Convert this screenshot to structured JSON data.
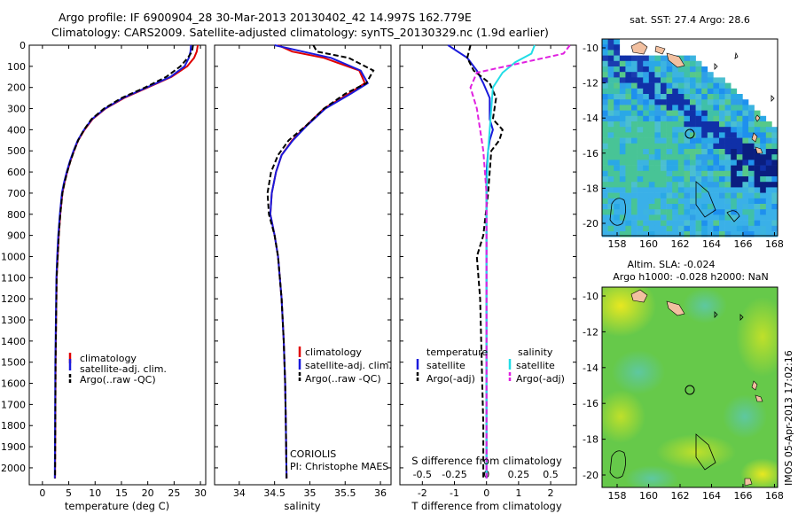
{
  "header": {
    "line1": "Argo profile: IF 6900904_28 30-Mar-2013 20130402_42 14.997S 162.779E",
    "line2": "Climatology: CARS2009. Satellite-adjusted climatology: synTS_20130329.nc (1.9d earlier)"
  },
  "colors": {
    "climatology": "#e00000",
    "satellite": "#1a1adc",
    "argo": "#000000",
    "sal_satellite": "#22dde6",
    "sal_argo": "#e020e0"
  },
  "chart_data": [
    {
      "type": "line",
      "id": "temp",
      "title": "",
      "xlabel": "temperature (deg C)",
      "ylabel": "",
      "xlim": [
        -2.5,
        31
      ],
      "ylim": [
        2080,
        0
      ],
      "xticks": [
        "0",
        "5",
        "10",
        "15",
        "20",
        "25",
        "30"
      ],
      "xtick_values": [
        0,
        5,
        10,
        15,
        20,
        25,
        30
      ],
      "yticks": [
        "0",
        "100",
        "200",
        "300",
        "400",
        "500",
        "600",
        "700",
        "800",
        "900",
        "1000",
        "1100",
        "1200",
        "1300",
        "1400",
        "1500",
        "1600",
        "1700",
        "1800",
        "1900",
        "2000"
      ],
      "ytick_values": [
        0,
        100,
        200,
        300,
        400,
        500,
        600,
        700,
        800,
        900,
        1000,
        1100,
        1200,
        1300,
        1400,
        1500,
        1600,
        1700,
        1800,
        1900,
        2000
      ],
      "legend": [
        "climatology",
        "satellite-adj. clim.",
        "Argo(..raw -QC)"
      ],
      "annotations": [],
      "series": [
        {
          "name": "climatology",
          "color": "climatology",
          "dash": false,
          "x": [
            29.5,
            29.3,
            28.8,
            27.5,
            24.5,
            20,
            15.5,
            12,
            9.5,
            8,
            6.8,
            6,
            5.3,
            4.7,
            4.2,
            3.8,
            3.4,
            3.1,
            2.9,
            2.7,
            2.6,
            2.5,
            2.45,
            2.4
          ],
          "y": [
            0,
            30,
            60,
            100,
            150,
            200,
            250,
            300,
            350,
            400,
            450,
            500,
            550,
            600,
            650,
            700,
            800,
            900,
            1000,
            1100,
            1300,
            1500,
            1800,
            2050
          ]
        },
        {
          "name": "satellite-adj. clim.",
          "color": "satellite",
          "dash": false,
          "x": [
            28.2,
            28.1,
            27.8,
            27.0,
            24.3,
            19.8,
            15.3,
            11.9,
            9.4,
            7.9,
            6.7,
            5.9,
            5.2,
            4.6,
            4.1,
            3.7,
            3.3,
            3.0,
            2.8,
            2.65,
            2.55,
            2.45,
            2.4,
            2.35
          ],
          "y": [
            0,
            30,
            60,
            100,
            150,
            200,
            250,
            300,
            350,
            400,
            450,
            500,
            550,
            600,
            650,
            700,
            800,
            900,
            1000,
            1100,
            1300,
            1500,
            1800,
            2050
          ]
        },
        {
          "name": "Argo(..raw -QC)",
          "color": "argo",
          "dash": true,
          "x": [
            28.6,
            28.4,
            27.6,
            26.2,
            23.5,
            19.5,
            15.0,
            11.7,
            9.3,
            7.9,
            6.8,
            6.0,
            5.3,
            4.7,
            4.2,
            3.8,
            3.4,
            3.1,
            2.9,
            2.7,
            2.6,
            2.5,
            2.45,
            2.4
          ],
          "y": [
            0,
            30,
            60,
            100,
            150,
            200,
            250,
            300,
            350,
            400,
            450,
            500,
            550,
            600,
            650,
            700,
            800,
            900,
            1000,
            1100,
            1300,
            1500,
            1800,
            2050
          ]
        }
      ]
    },
    {
      "type": "line",
      "id": "sal",
      "title": "",
      "xlabel": "salinity",
      "ylabel": "",
      "xlim": [
        33.65,
        36.15
      ],
      "ylim": [
        2080,
        0
      ],
      "xticks": [
        "34",
        "34.5",
        "35",
        "35.5",
        "36"
      ],
      "xtick_values": [
        34,
        34.5,
        35,
        35.5,
        36
      ],
      "yticks": [],
      "ytick_values": [],
      "legend": [
        "climatology",
        "satellite-adj. clim.",
        "Argo(..raw -QC)"
      ],
      "annotations": [
        "CORIOLIS",
        "PI: Christophe MAES"
      ],
      "series": [
        {
          "name": "climatology",
          "color": "climatology",
          "dash": false,
          "x": [
            34.55,
            34.75,
            35.2,
            35.7,
            35.78,
            35.55,
            35.2,
            34.95,
            34.75,
            34.6,
            34.52,
            34.46,
            34.44,
            34.5,
            34.55,
            34.6,
            34.63,
            34.65,
            34.66,
            34.67
          ],
          "y": [
            0,
            30,
            60,
            120,
            180,
            230,
            300,
            380,
            450,
            520,
            600,
            700,
            800,
            900,
            1000,
            1200,
            1400,
            1600,
            1800,
            2050
          ]
        },
        {
          "name": "satellite-adj. clim.",
          "color": "satellite",
          "dash": false,
          "x": [
            34.5,
            34.9,
            35.3,
            35.72,
            35.82,
            35.58,
            35.22,
            34.96,
            34.76,
            34.6,
            34.52,
            34.46,
            34.44,
            34.5,
            34.55,
            34.6,
            34.63,
            34.65,
            34.66,
            34.67
          ],
          "y": [
            0,
            30,
            60,
            120,
            180,
            230,
            300,
            380,
            450,
            520,
            600,
            700,
            800,
            900,
            1000,
            1200,
            1400,
            1600,
            1800,
            2050
          ]
        },
        {
          "name": "Argo(..raw -QC)",
          "color": "argo",
          "dash": true,
          "x": [
            35.05,
            35.1,
            35.55,
            35.9,
            35.8,
            35.5,
            35.2,
            34.95,
            34.7,
            34.55,
            34.45,
            34.4,
            34.42,
            34.5,
            34.55,
            34.6,
            34.63,
            34.65,
            34.66,
            34.67
          ],
          "y": [
            0,
            30,
            60,
            120,
            180,
            230,
            300,
            380,
            450,
            520,
            600,
            700,
            800,
            900,
            1000,
            1200,
            1400,
            1600,
            1800,
            2050
          ]
        }
      ]
    },
    {
      "type": "line",
      "id": "diff",
      "title": "",
      "xlabel": "T difference from climatology",
      "xlabel2": "S difference from climatology",
      "xlim": [
        -2.7,
        2.8
      ],
      "ylim": [
        2080,
        0
      ],
      "xticks": [
        "-2",
        "-1",
        "0",
        "1",
        "2"
      ],
      "xtick_values": [
        -2,
        -1,
        0,
        1,
        2
      ],
      "xticks_s": [
        "-0.5",
        "-0.25",
        "0",
        "0.25",
        "0.5"
      ],
      "xtick_values_s": [
        -2,
        -1,
        0,
        1,
        2
      ],
      "yticks": [],
      "ytick_values": [],
      "legend_title_t": "temperature",
      "legend_title_s": "salinity",
      "legend": [
        "satellite",
        "Argo(-adj)",
        "satellite",
        "Argo(-adj)"
      ],
      "annotations": [],
      "series": [
        {
          "name": "T satellite",
          "color": "satellite",
          "dash": false,
          "x": [
            -1.2,
            -0.6,
            -0.3,
            -0.1,
            0.1,
            0.1,
            0.2,
            0.1,
            0.05,
            0,
            0,
            0,
            0,
            0,
            0
          ],
          "y": [
            0,
            60,
            120,
            180,
            250,
            350,
            400,
            450,
            500,
            600,
            700,
            900,
            1200,
            1600,
            2050
          ]
        },
        {
          "name": "T Argo(-adj)",
          "color": "argo",
          "dash": true,
          "x": [
            -0.5,
            -0.6,
            -0.4,
            0.1,
            0.3,
            0.2,
            0.5,
            0.4,
            0.15,
            0.1,
            0.05,
            -0.1,
            -0.3,
            -0.2,
            -0.15,
            -0.1,
            -0.1
          ],
          "y": [
            0,
            60,
            120,
            180,
            250,
            350,
            400,
            450,
            500,
            600,
            700,
            900,
            1000,
            1200,
            1500,
            1800,
            2050
          ]
        },
        {
          "name": "S satellite",
          "color": "sal_satellite",
          "dash": false,
          "x": [
            1.5,
            1.4,
            0.9,
            0.5,
            0.2,
            0.15,
            0.1,
            0.05,
            0,
            0,
            0,
            0,
            0,
            0
          ],
          "y": [
            0,
            40,
            80,
            130,
            200,
            300,
            400,
            500,
            700,
            900,
            1200,
            1500,
            1800,
            2050
          ]
        },
        {
          "name": "S Argo(-adj)",
          "color": "sal_argo",
          "dash": true,
          "x": [
            2.6,
            2.4,
            1.2,
            -0.3,
            -0.5,
            -0.3,
            -0.2,
            -0.1,
            0,
            0,
            0,
            0,
            0
          ],
          "y": [
            0,
            40,
            80,
            130,
            200,
            300,
            400,
            500,
            700,
            900,
            1200,
            1600,
            2050
          ]
        }
      ]
    }
  ],
  "maps": {
    "sst": {
      "title": "sat. SST: 27.4 Argo: 28.6",
      "xticks": [
        "158",
        "160",
        "162",
        "164",
        "166",
        "168"
      ],
      "yticks": [
        "-10",
        "-12",
        "-14",
        "-16",
        "-18",
        "-20"
      ]
    },
    "sla": {
      "title_line1": "Altim. SLA: -0.024",
      "title_line2": "Argo h1000: -0.028 h2000: NaN",
      "xticks": [
        "158",
        "160",
        "162",
        "164",
        "166",
        "168"
      ],
      "yticks": [
        "-10",
        "-12",
        "-14",
        "-16",
        "-18",
        "-20"
      ]
    }
  },
  "stamp": "IMOS 05-Apr-2013 17:02:16"
}
